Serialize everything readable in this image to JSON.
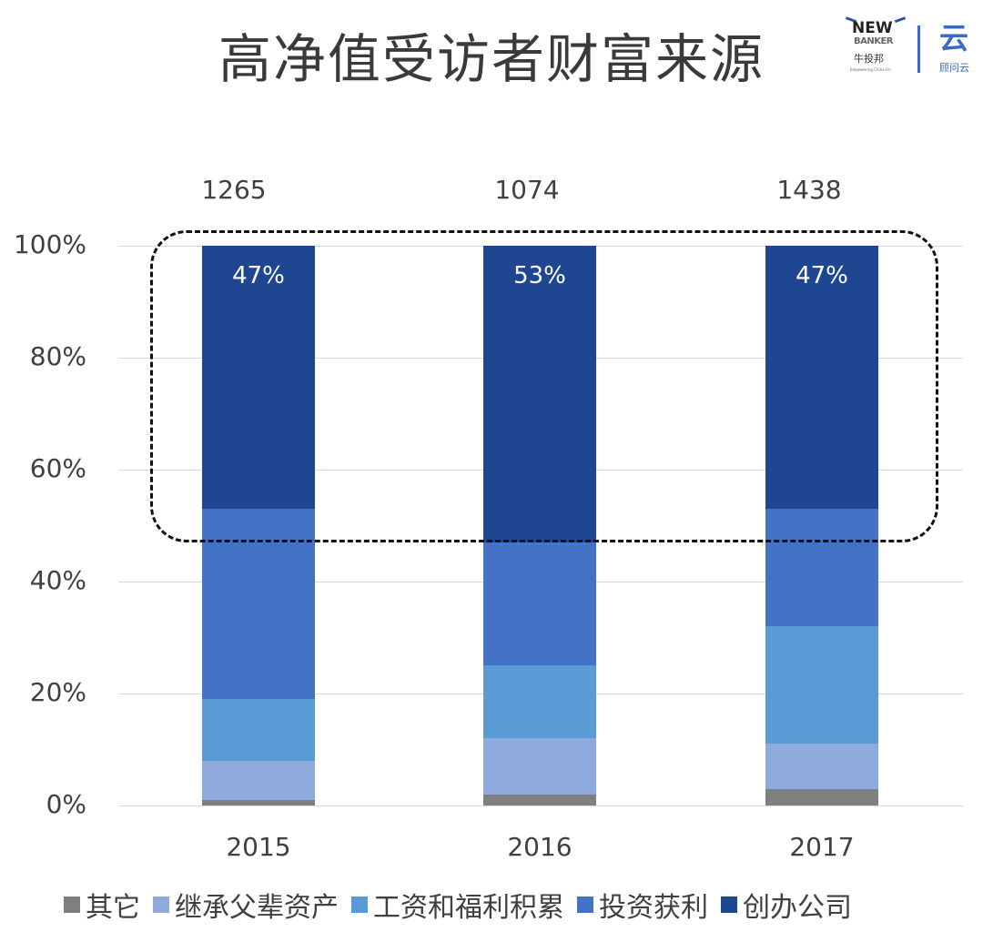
{
  "title": "高净值受访者财富来源",
  "logos": {
    "left": {
      "line1": "NEW",
      "line2": "BANKER",
      "cn": "牛投邦",
      "tagline": "Empowering China Fin"
    },
    "right": {
      "glyph": "云",
      "cn": "顾问云"
    }
  },
  "chart_data": {
    "type": "bar",
    "stacked": true,
    "percent": true,
    "title": "高净值受访者财富来源",
    "categories": [
      "2015",
      "2016",
      "2017"
    ],
    "sample_sizes": [
      "1265",
      "1074",
      "1438"
    ],
    "series": [
      {
        "name": "其它",
        "color": "#7f7f7f",
        "values": [
          1,
          2,
          3
        ]
      },
      {
        "name": "继承父辈资产",
        "color": "#8faadc",
        "values": [
          7,
          10,
          8
        ]
      },
      {
        "name": "工资和福利积累",
        "color": "#5b9bd5",
        "values": [
          11,
          13,
          21
        ]
      },
      {
        "name": "投资获利",
        "color": "#4472c4",
        "values": [
          34,
          22,
          21
        ]
      },
      {
        "name": "创办公司",
        "color": "#1f4690",
        "values": [
          47,
          53,
          47
        ]
      }
    ],
    "data_labels": {
      "创办公司": [
        "47%",
        "53%",
        "47%"
      ]
    },
    "yticks": [
      "0%",
      "20%",
      "40%",
      "60%",
      "80%",
      "100%"
    ],
    "ylim": [
      0,
      100
    ],
    "xlabel": "",
    "ylabel": "",
    "grid": true,
    "legend_position": "bottom",
    "annotation": "dashed rounded box highlighting 创办公司 segments"
  }
}
